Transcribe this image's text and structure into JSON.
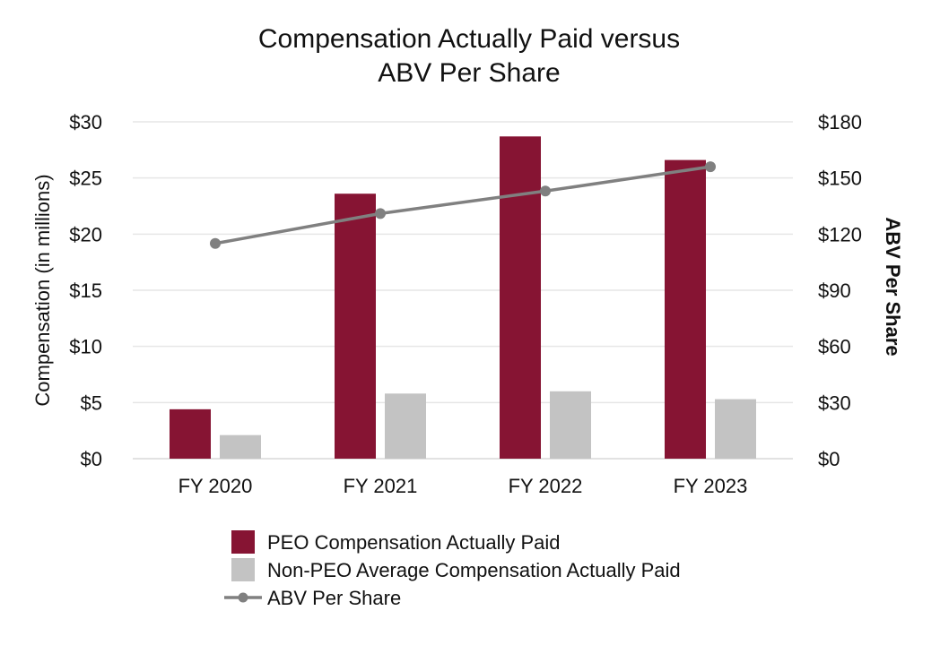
{
  "chart_data": {
    "type": "bar",
    "title_lines": [
      "Compensation Actually Paid versus",
      "ABV Per Share"
    ],
    "categories": [
      "FY 2020",
      "FY 2021",
      "FY 2022",
      "FY 2023"
    ],
    "ylabel": "Compensation (in millions)",
    "y2label": "ABV Per Share",
    "ylim": [
      0,
      30
    ],
    "y2lim": [
      0,
      180
    ],
    "yticks": [
      0,
      5,
      10,
      15,
      20,
      25,
      30
    ],
    "yticklabels": [
      "$0",
      "$5",
      "$10",
      "$15",
      "$20",
      "$25",
      "$30"
    ],
    "y2ticklabels": [
      "$0",
      "$30",
      "$60",
      "$90",
      "$120",
      "$150",
      "$180"
    ],
    "grid": true,
    "legend_position": "bottom",
    "series": [
      {
        "name": "PEO Compensation Actually Paid",
        "kind": "bar",
        "axis": "left",
        "color": "#861433",
        "values": [
          4.4,
          23.6,
          28.7,
          26.6
        ]
      },
      {
        "name": "Non-PEO Average Compensation Actually Paid",
        "kind": "bar",
        "axis": "left",
        "color": "#c3c3c3",
        "values": [
          2.1,
          5.8,
          6.0,
          5.3
        ]
      },
      {
        "name": "ABV Per Share",
        "kind": "line",
        "axis": "right",
        "color": "#808080",
        "values": [
          115,
          131,
          143,
          156
        ]
      }
    ]
  }
}
